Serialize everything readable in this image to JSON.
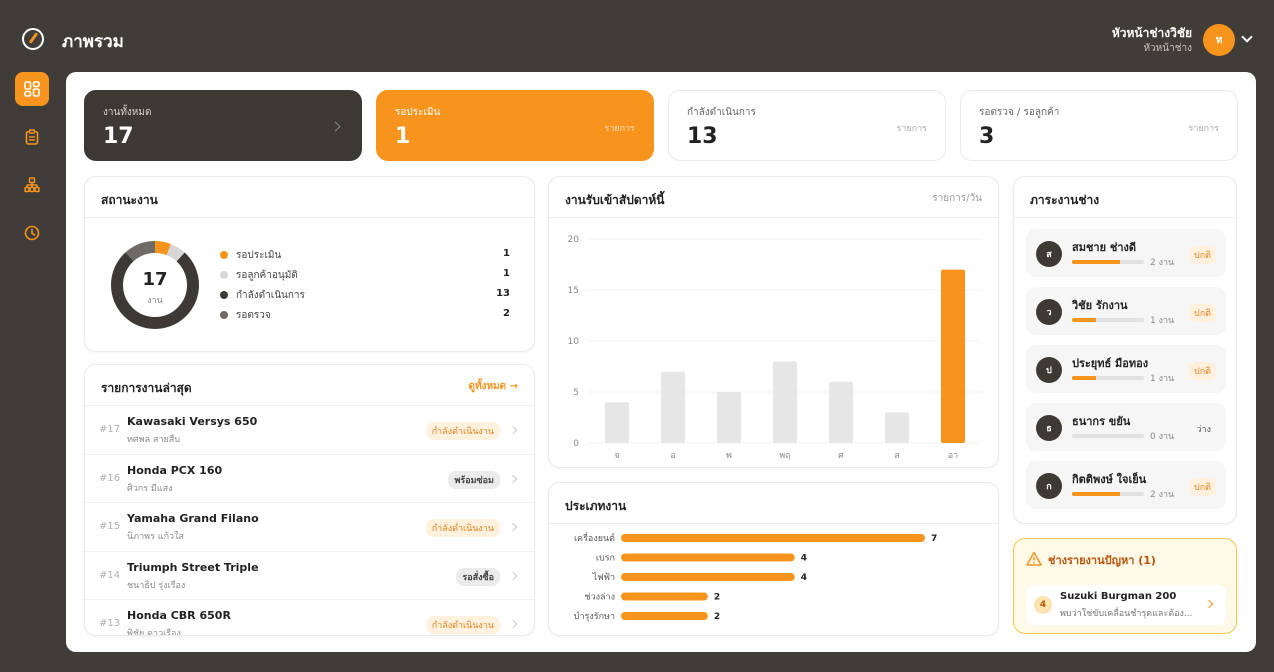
{
  "header": {
    "title": "ภาพรวม",
    "user_name": "หัวหน้าช่างวิชัย",
    "user_role": "หัวหน้าช่าง",
    "avatar_initial": "ห"
  },
  "sidebar": {
    "items": [
      {
        "name": "dashboard",
        "icon": "dashboard-grid-icon",
        "active": true
      },
      {
        "name": "jobs",
        "icon": "clipboard-icon",
        "active": false
      },
      {
        "name": "technicians",
        "icon": "team-icon",
        "active": false
      },
      {
        "name": "history",
        "icon": "clock-icon",
        "active": false
      }
    ]
  },
  "stats": [
    {
      "label": "งานทั้งหมด",
      "value": "17",
      "unit": "",
      "style": "dark"
    },
    {
      "label": "รอประเมิน",
      "value": "1",
      "unit": "รายการ",
      "style": "orange"
    },
    {
      "label": "กำลังดำเนินการ",
      "value": "13",
      "unit": "รายการ",
      "style": "light"
    },
    {
      "label": "รอตรวจ / รอลูกค้า",
      "value": "3",
      "unit": "รายการ",
      "style": "light"
    }
  ],
  "status": {
    "title": "สถานะงาน",
    "total": "17",
    "total_unit": "งาน",
    "items": [
      {
        "label": "รอประเมิน",
        "value": 1,
        "color": "#f7941d"
      },
      {
        "label": "รอลูกค้าอนุมัติ",
        "value": 1,
        "color": "#d6d6d6"
      },
      {
        "label": "กำลังดำเนินการ",
        "value": 13,
        "color": "#3d3935"
      },
      {
        "label": "รอตรวจ",
        "value": 2,
        "color": "#6e6a66"
      }
    ]
  },
  "recent": {
    "title": "รายการงานล่าสุด",
    "view_all": "ดูทั้งหมด →",
    "jobs": [
      {
        "id": "#17",
        "name": "Kawasaki Versys 650",
        "customer": "ทศพล สายสืบ",
        "status": "กำลังดำเนินงาน",
        "status_type": "progress"
      },
      {
        "id": "#16",
        "name": "Honda PCX 160",
        "customer": "ศิวกร มีแสง",
        "status": "พร้อมซ่อม",
        "status_type": "ready"
      },
      {
        "id": "#15",
        "name": "Yamaha Grand Filano",
        "customer": "นิภาพร แก้วใส",
        "status": "กำลังดำเนินงาน",
        "status_type": "progress"
      },
      {
        "id": "#14",
        "name": "Triumph Street Triple",
        "customer": "ชนาธิป รุ่งเรือง",
        "status": "รอสั่งซื้อ",
        "status_type": "waiting"
      },
      {
        "id": "#13",
        "name": "Honda CBR 650R",
        "customer": "พิชัย ดาวเรือง",
        "status": "กำลังดำเนินงาน",
        "status_type": "progress"
      }
    ]
  },
  "weekly": {
    "title": "งานรับเข้าสัปดาห์นี้",
    "unit": "รายการ/วัน"
  },
  "types": {
    "title": "ประเภทงาน"
  },
  "chart_data": [
    {
      "type": "bar",
      "title": "งานรับเข้าสัปดาห์นี้",
      "ylabel": "รายการ/วัน",
      "categories": [
        "จ",
        "อ",
        "พ",
        "พฤ",
        "ศ",
        "ส",
        "อา"
      ],
      "values": [
        4,
        7,
        5,
        8,
        6,
        3,
        17
      ],
      "highlight": "อา",
      "yticks": [
        0,
        5,
        10,
        15,
        20
      ],
      "ylim": [
        0,
        20
      ],
      "colors": {
        "normal": "#e6e6e6",
        "highlight": "#f7941d"
      }
    },
    {
      "type": "bar",
      "orientation": "horizontal",
      "title": "ประเภทงาน",
      "categories": [
        "เครื่องยนต์",
        "เบรก",
        "ไฟฟ้า",
        "ช่วงล่าง",
        "บำรุงรักษา"
      ],
      "values": [
        7,
        4,
        4,
        2,
        2
      ],
      "color": "#f7941d"
    }
  ],
  "workload": {
    "title": "ภาระงานช่าง",
    "techs": [
      {
        "initial": "ส",
        "name": "สมชาย ช่างดี",
        "count": "2 งาน",
        "load": 0.67,
        "status": "ปกติ",
        "status_type": "normal"
      },
      {
        "initial": "ว",
        "name": "วิชัย รักงาน",
        "count": "1 งาน",
        "load": 0.33,
        "status": "ปกติ",
        "status_type": "normal"
      },
      {
        "initial": "ป",
        "name": "ประยุทธ์ มือทอง",
        "count": "1 งาน",
        "load": 0.33,
        "status": "ปกติ",
        "status_type": "normal"
      },
      {
        "initial": "ธ",
        "name": "ธนากร ขยัน",
        "count": "0 งาน",
        "load": 0,
        "status": "ว่าง",
        "status_type": "free"
      },
      {
        "initial": "ก",
        "name": "กิตติพงษ์ ใจเย็น",
        "count": "2 งาน",
        "load": 0.67,
        "status": "ปกติ",
        "status_type": "normal"
      }
    ]
  },
  "alert": {
    "title": "ช่างรายงานปัญหา (1)",
    "item_num": "4",
    "item_name": "Suzuki Burgman 200",
    "item_desc": "พบว่าใช่ขับเคลื่อนชำรุดและต้อง..."
  },
  "colors": {
    "accent": "#f7941d",
    "dark": "#3d3935",
    "background": "#403c37"
  }
}
